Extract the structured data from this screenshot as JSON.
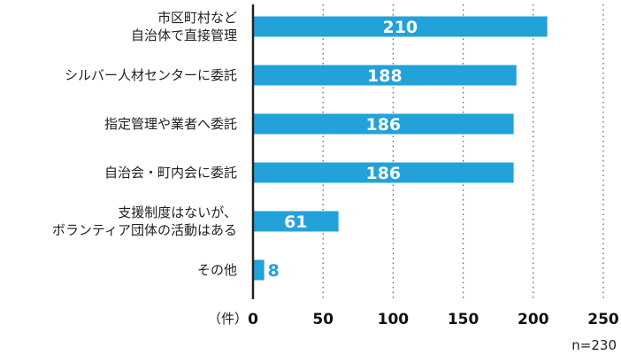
{
  "chart_data": {
    "type": "bar",
    "orientation": "horizontal",
    "categories": [
      [
        "市区町村など",
        "自治体で直接管理"
      ],
      [
        "シルバー人材センターに委託"
      ],
      [
        "指定管理や業者へ委託"
      ],
      [
        "自治会・町内会に委託"
      ],
      [
        "支援制度はないが、",
        "ボランティア団体の活動はある"
      ],
      [
        "その他"
      ]
    ],
    "values": [
      210,
      188,
      186,
      186,
      61,
      8
    ],
    "value_labels": [
      "210",
      "188",
      "186",
      "186",
      "61",
      "8"
    ],
    "xlim": [
      0,
      250
    ],
    "xticks": [
      "0",
      "50",
      "100",
      "150",
      "200",
      "250"
    ],
    "xlabel": "（件）",
    "note": "n=230",
    "bar_color": "#22a2d8",
    "grid": "vertical-dotted"
  }
}
